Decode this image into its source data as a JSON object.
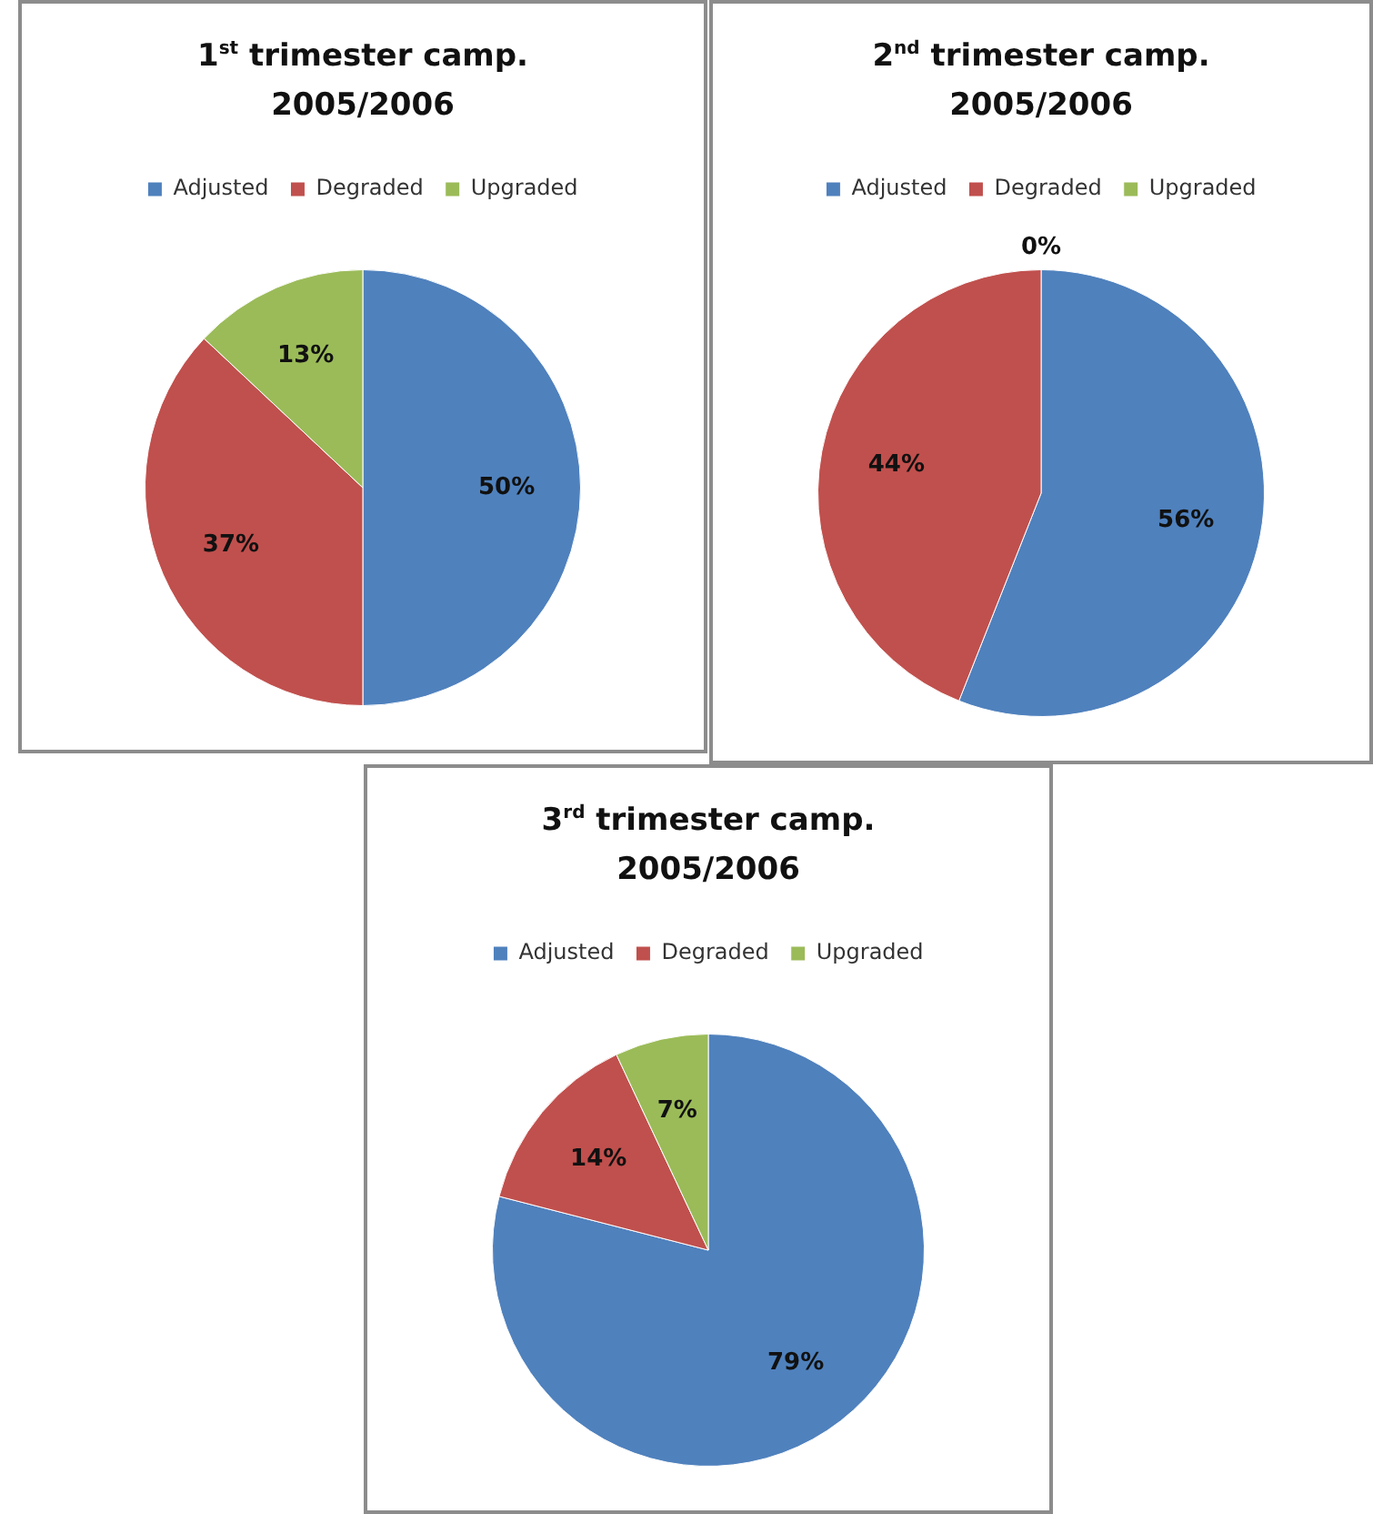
{
  "chart_data": [
    {
      "type": "pie",
      "title": "1$^{st}$ trimester camp. 2005/2006",
      "categories": [
        "Adjusted",
        "Degraded",
        "Upgraded"
      ],
      "values": [
        50,
        37,
        13
      ],
      "value_labels": [
        "50%",
        "37%",
        "13%"
      ],
      "colors": [
        "#4f81bd",
        "#c0504d",
        "#9bbb59"
      ],
      "legend": "top"
    },
    {
      "type": "pie",
      "title": "2$^{nd}$ trimester camp. 2005/2006",
      "categories": [
        "Adjusted",
        "Degraded",
        "Upgraded"
      ],
      "values": [
        56,
        44,
        0
      ],
      "value_labels": [
        "56%",
        "44%",
        "0%"
      ],
      "colors": [
        "#4f81bd",
        "#c0504d",
        "#9bbb59"
      ],
      "legend": "top"
    },
    {
      "type": "pie",
      "title": "3$^{rd}$ trimester camp. 2005/2006",
      "categories": [
        "Adjusted",
        "Degraded",
        "Upgraded"
      ],
      "values": [
        79,
        14,
        7
      ],
      "value_labels": [
        "79%",
        "14%",
        "7%"
      ],
      "colors": [
        "#4f81bd",
        "#c0504d",
        "#9bbb59"
      ],
      "legend": "top"
    }
  ]
}
